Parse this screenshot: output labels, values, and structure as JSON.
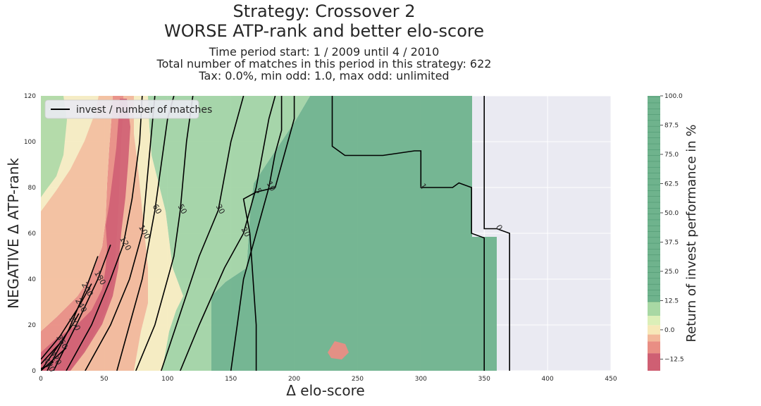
{
  "chart_data": {
    "type": "contourf",
    "title": "Strategy: Crossover 2",
    "subtitle": "WORSE ATP-rank and better elo-score",
    "info_lines": [
      "Time period start: 1 / 2009 until 4 / 2010",
      "Total number of matches in this period in this strategy: 622",
      "Tax: 0.0%, min odd: 1.0, max odd: unlimited"
    ],
    "xlabel": "Δ elo-score",
    "ylabel": "NEGATIVE Δ ATP-rank",
    "xlim": [
      0,
      450
    ],
    "ylim": [
      0,
      120
    ],
    "x_ticks": [
      0,
      50,
      100,
      150,
      200,
      250,
      300,
      350,
      400,
      450
    ],
    "y_ticks": [
      0,
      20,
      40,
      60,
      80,
      100,
      120
    ],
    "legend": {
      "label": "invest / number of matches",
      "location": "upper-left"
    },
    "colorbar": {
      "label": "Return of invest performance in %",
      "range": [
        -17.5,
        100
      ],
      "ticks": [
        -12.5,
        0.0,
        12.5,
        25.0,
        37.5,
        50.0,
        62.5,
        75.0,
        87.5,
        100.0
      ],
      "tick_labels": [
        "−12.5",
        "0.0",
        "12.5",
        "25.0",
        "37.5",
        "50.0",
        "62.5",
        "75.0",
        "87.5",
        "100.0"
      ],
      "colors": {
        "very_negative": "#cf5f73",
        "negative": "#e98e84",
        "slightly_negative": "#f2b89a",
        "neutral": "#f7e8b8",
        "slightly_positive": "#dcefb8",
        "positive": "#a8d8a4",
        "high": "#6fb38d"
      }
    },
    "contour_levels": [
      {
        "label": "0",
        "points": [
          [
            370,
            0
          ],
          [
            370,
            60
          ],
          [
            360,
            62
          ],
          [
            350,
            62
          ],
          [
            350,
            120
          ]
        ]
      },
      {
        "label": "1",
        "points": [
          [
            350,
            0
          ],
          [
            350,
            58
          ],
          [
            340,
            60
          ],
          [
            340,
            80
          ],
          [
            330,
            82
          ],
          [
            325,
            80
          ],
          [
            300,
            80
          ],
          [
            300,
            96
          ],
          [
            295,
            96
          ],
          [
            270,
            94
          ],
          [
            240,
            94
          ],
          [
            230,
            98
          ],
          [
            230,
            120
          ]
        ]
      },
      {
        "label": "5",
        "points": [
          [
            170,
            0
          ],
          [
            170,
            20
          ],
          [
            165,
            60
          ],
          [
            160,
            75
          ],
          [
            170,
            78
          ],
          [
            185,
            80
          ],
          [
            200,
            110
          ],
          [
            200,
            120
          ]
        ]
      },
      {
        "label": "10",
        "points": [
          [
            150,
            0
          ],
          [
            155,
            20
          ],
          [
            160,
            40
          ],
          [
            170,
            60
          ],
          [
            180,
            80
          ],
          [
            185,
            95
          ],
          [
            190,
            105
          ],
          [
            190,
            120
          ]
        ]
      },
      {
        "label": "20",
        "points": [
          [
            110,
            0
          ],
          [
            125,
            20
          ],
          [
            145,
            45
          ],
          [
            160,
            60
          ],
          [
            170,
            80
          ],
          [
            180,
            110
          ],
          [
            185,
            120
          ]
        ]
      },
      {
        "label": "30",
        "points": [
          [
            95,
            0
          ],
          [
            110,
            25
          ],
          [
            125,
            50
          ],
          [
            140,
            70
          ],
          [
            150,
            100
          ],
          [
            160,
            120
          ]
        ]
      },
      {
        "label": "50",
        "points": [
          [
            75,
            0
          ],
          [
            90,
            20
          ],
          [
            105,
            50
          ],
          [
            110,
            70
          ],
          [
            115,
            100
          ],
          [
            120,
            120
          ]
        ]
      },
      {
        "label": "60",
        "points": [
          [
            60,
            0
          ],
          [
            70,
            20
          ],
          [
            80,
            40
          ],
          [
            90,
            70
          ],
          [
            95,
            90
          ],
          [
            100,
            110
          ],
          [
            105,
            120
          ]
        ]
      },
      {
        "label": "100",
        "points": [
          [
            35,
            0
          ],
          [
            55,
            20
          ],
          [
            70,
            40
          ],
          [
            80,
            60
          ],
          [
            85,
            90
          ],
          [
            90,
            120
          ]
        ]
      },
      {
        "label": "120",
        "points": [
          [
            20,
            0
          ],
          [
            40,
            20
          ],
          [
            55,
            40
          ],
          [
            65,
            55
          ],
          [
            72,
            75
          ],
          [
            78,
            100
          ],
          [
            80,
            120
          ]
        ]
      },
      {
        "label": "180",
        "points": [
          [
            10,
            0
          ],
          [
            28,
            20
          ],
          [
            45,
            40
          ],
          [
            55,
            55
          ]
        ]
      },
      {
        "label": "200",
        "points": [
          [
            5,
            0
          ],
          [
            22,
            18
          ],
          [
            35,
            35
          ],
          [
            45,
            50
          ]
        ]
      },
      {
        "label": "240",
        "points": [
          [
            0,
            5
          ],
          [
            15,
            15
          ],
          [
            30,
            28
          ],
          [
            40,
            38
          ]
        ]
      },
      {
        "label": "300",
        "points": [
          [
            0,
            0
          ],
          [
            10,
            8
          ],
          [
            25,
            20
          ],
          [
            30,
            25
          ]
        ]
      },
      {
        "label": "360",
        "points": [
          [
            0,
            3
          ],
          [
            15,
            12
          ]
        ]
      },
      {
        "label": "420",
        "points": [
          [
            0,
            0
          ],
          [
            10,
            5
          ],
          [
            20,
            10
          ]
        ]
      },
      {
        "label": "480",
        "points": [
          [
            0,
            1
          ],
          [
            5,
            2
          ],
          [
            10,
            4
          ]
        ]
      }
    ]
  }
}
